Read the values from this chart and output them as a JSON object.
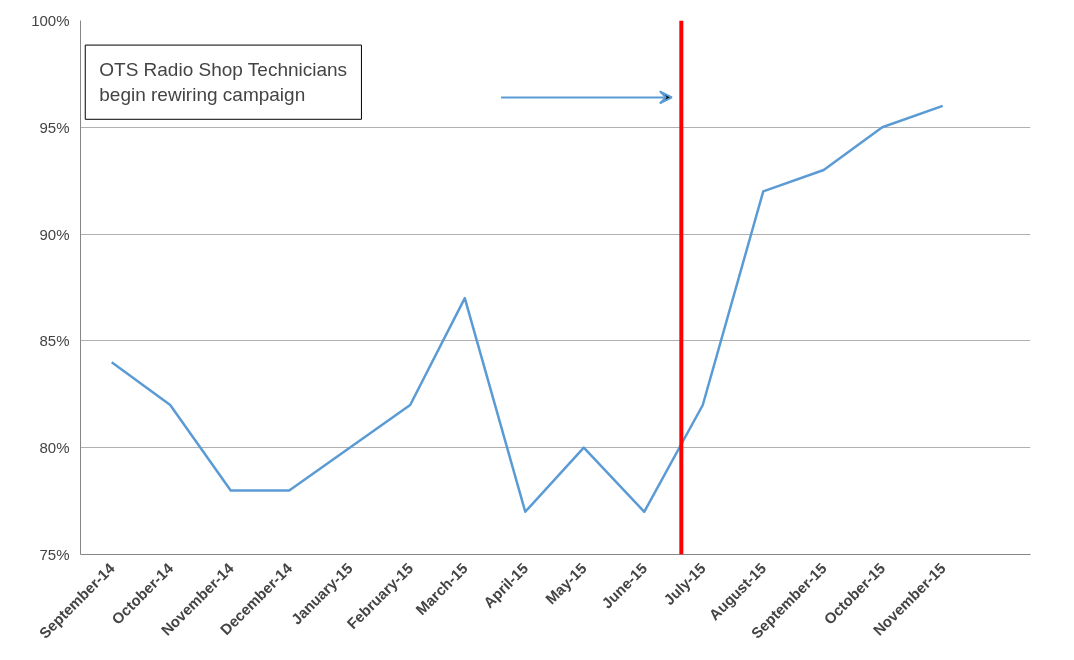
{
  "chart_data": {
    "type": "line",
    "x": [
      "2014-09",
      "2014-10",
      "2014-11",
      "2014-12",
      "2015-01",
      "2015-02",
      "2015-03",
      "2015-04",
      "2015-05",
      "2015-06",
      "2015-07",
      "2015-08",
      "2015-09",
      "2015-10",
      "2015-11"
    ],
    "series": [
      {
        "color": "#5b9bd5",
        "values": [
          84,
          82,
          78,
          78,
          80,
          82,
          87,
          77,
          80,
          77,
          82,
          92,
          93,
          95,
          96
        ]
      }
    ],
    "xlim": [
      "2014-08-16",
      "2015-12-16"
    ],
    "xticks": [
      {
        "value": "2014-09",
        "label": "September-14"
      },
      {
        "value": "2014-10",
        "label": "October-14"
      },
      {
        "value": "2014-11",
        "label": "November-14"
      },
      {
        "value": "2014-12",
        "label": "December-14"
      },
      {
        "value": "2015-01",
        "label": "January-15"
      },
      {
        "value": "2015-02",
        "label": "February-15"
      },
      {
        "value": "2015-03",
        "label": "March-15"
      },
      {
        "value": "2015-04",
        "label": "April-15"
      },
      {
        "value": "2015-05",
        "label": "May-15"
      },
      {
        "value": "2015-06",
        "label": "June-15"
      },
      {
        "value": "2015-07",
        "label": "July-15"
      },
      {
        "value": "2015-08",
        "label": "August-15"
      },
      {
        "value": "2015-09",
        "label": "September-15"
      },
      {
        "value": "2015-10",
        "label": "October-15"
      },
      {
        "value": "2015-11",
        "label": "November-15"
      }
    ],
    "ylim": [
      75,
      100
    ],
    "yticks": [
      {
        "value": 75,
        "label": "75%"
      },
      {
        "value": 80,
        "label": "80%"
      },
      {
        "value": 85,
        "label": "85%"
      },
      {
        "value": 90,
        "label": "90%"
      },
      {
        "value": 95,
        "label": "95%"
      },
      {
        "value": 100,
        "label": "100%"
      }
    ],
    "ref_lines": [
      {
        "axis": "x",
        "value": "2015-06-20",
        "color": "#ff0000"
      }
    ],
    "annotations": [
      "OTS Radio Shop Technicians\nbegin rewiring campaign"
    ],
    "grid": "y",
    "marker": "none",
    "line_style": "solid"
  }
}
